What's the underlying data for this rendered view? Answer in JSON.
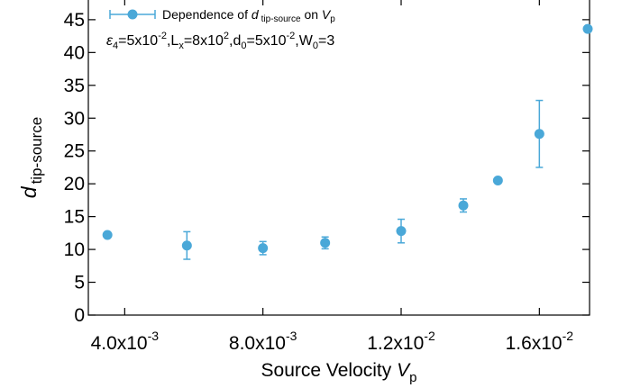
{
  "chart_data": {
    "type": "scatter",
    "xlabel": "Source Velocity V_p",
    "ylabel": "d_tip-source",
    "xlim": [
      0.003,
      0.0174
    ],
    "ylim": [
      0,
      48
    ],
    "x_ticks": [
      0.004,
      0.008,
      0.012,
      0.016
    ],
    "x_tick_labels": [
      {
        "mant": "4.0x10",
        "exp": "-3"
      },
      {
        "mant": "8.0x10",
        "exp": "-3"
      },
      {
        "mant": "1.2x10",
        "exp": "-2"
      },
      {
        "mant": "1.6x10",
        "exp": "-2"
      }
    ],
    "y_ticks": [
      0,
      5,
      10,
      15,
      20,
      25,
      30,
      35,
      40,
      45
    ],
    "y_tick_labels": [
      "0",
      "5",
      "10",
      "15",
      "20",
      "25",
      "30",
      "35",
      "40",
      "45"
    ],
    "grid": false,
    "legend_position": "top-left",
    "color": "#4aa8d8",
    "series": [
      {
        "name": "Dependence of d tip-source on V p",
        "x": [
          0.0035,
          0.0058,
          0.008,
          0.0098,
          0.012,
          0.0138,
          0.0148,
          0.016,
          0.0174
        ],
        "y": [
          12.2,
          10.6,
          10.2,
          11.0,
          12.8,
          16.7,
          20.5,
          27.6,
          43.6
        ],
        "err": [
          0,
          2.1,
          1.0,
          0.9,
          1.8,
          1.0,
          0,
          5.1,
          0
        ]
      }
    ]
  },
  "legend": {
    "prefix": "Dependence of ",
    "d": "d",
    "d_sub": "tip-source",
    "on": " on ",
    "v": "V",
    "v_sub": "p"
  },
  "params": {
    "eps": "ε",
    "eps_sub": "4",
    "eps_val": "=5x10",
    "eps_exp": "-2",
    "l": ",L",
    "l_sub": "x",
    "l_val": "=8x10",
    "l_exp": "2",
    "d": ",d",
    "d_sub": "0",
    "d_val": "=5x10",
    "d_exp": "-2",
    "w": ",W",
    "w_sub": "0",
    "w_val": "=3"
  },
  "axis_titles": {
    "x_main": "Source Velocity ",
    "x_var": "V",
    "x_sub": "p",
    "y_var": "d",
    "y_sub": "tip-source"
  }
}
